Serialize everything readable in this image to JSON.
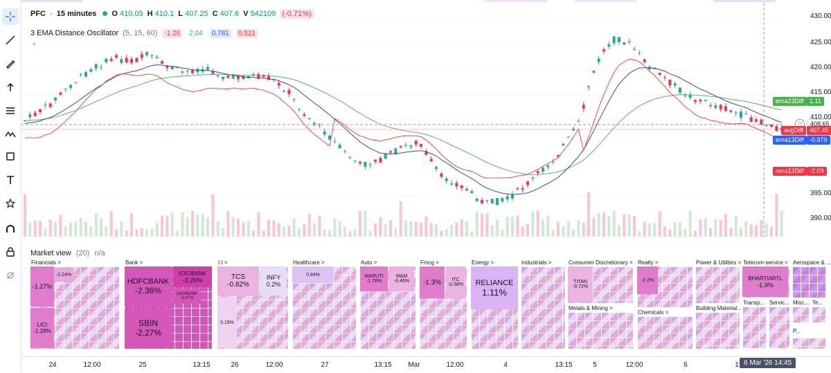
{
  "toolbar": {
    "tools": [
      {
        "id": "crosshair",
        "icon": "crosshair-icon"
      },
      {
        "id": "trendline",
        "icon": "trendline-icon"
      },
      {
        "id": "brush",
        "icon": "brush-icon"
      },
      {
        "id": "arrow",
        "icon": "arrow-up-icon"
      },
      {
        "id": "fib",
        "icon": "fib-levels-icon"
      },
      {
        "id": "pattern",
        "icon": "pattern-icon"
      },
      {
        "id": "rectangle",
        "icon": "rectangle-icon"
      },
      {
        "id": "text",
        "icon": "text-icon"
      },
      {
        "id": "favorites",
        "icon": "star-icon"
      },
      {
        "id": "magnet",
        "icon": "magnet-icon"
      },
      {
        "id": "lock",
        "icon": "lock-icon"
      },
      {
        "id": "hide",
        "icon": "eye-off-icon"
      }
    ]
  },
  "legend": {
    "symbol": "PFC",
    "interval": "15 minutes",
    "o_key": "O",
    "o_val": "410.05",
    "h_key": "H",
    "h_val": "410.1",
    "l_key": "L",
    "l_val": "407.25",
    "c_key": "C",
    "c_val": "407.6",
    "v_key": "V",
    "v_val": "542109",
    "change": "(-0.71%)"
  },
  "indicator": {
    "title": "3 EMA Distance Oscillator",
    "params": "(5, 15, 60)",
    "v1": "-1.26",
    "v2": "2.04",
    "v3": "0.781",
    "v4": "0.521"
  },
  "price_axis": {
    "labels": [
      "430.00",
      "425.00",
      "420.00",
      "415.00",
      "410.00",
      "395.00",
      "390.00"
    ],
    "tags": {
      "ema23": {
        "name": "ema23Diff",
        "value": "1.11",
        "color": "#4caf50"
      },
      "price": {
        "value": "408.65",
        "color": "#ffffff"
      },
      "avg": {
        "name": "avgDiff",
        "value": "407.45",
        "color": "#f23645"
      },
      "ema13": {
        "name": "ema13Diff",
        "value": "-0.979",
        "color": "#2962ff"
      },
      "ema12": {
        "name": "ema12Diff",
        "value": "-2.09",
        "color": "#f23645"
      }
    }
  },
  "market_view": {
    "title": "Market view",
    "count": "(20)",
    "status": "n/a",
    "sectors": [
      {
        "name": "Financials >",
        "stocks": [
          {
            "label": "",
            "value": "-2.24%"
          },
          {
            "label": "",
            "value": "-1.27%"
          },
          {
            "label": "LICI",
            "value": "-1.28%"
          }
        ]
      },
      {
        "name": "Bank >",
        "stocks": [
          {
            "label": "HDFCBANK",
            "value": "-2.36%"
          },
          {
            "label": "ICICIBANK",
            "value": "-3.26%"
          },
          {
            "label": "AXISBANK",
            "value": "-2.47%"
          },
          {
            "label": "SBIN",
            "value": "-2.27%"
          }
        ]
      },
      {
        "name": "I.t >",
        "stocks": [
          {
            "label": "TCS",
            "value": "-0.82%"
          },
          {
            "label": "INFY",
            "value": "0.2%"
          },
          {
            "label": "",
            "value": "0.19%"
          }
        ]
      },
      {
        "name": "Healthcare >",
        "stocks": [
          {
            "label": "",
            "value": "0.84%"
          }
        ]
      },
      {
        "name": "Auto >",
        "stocks": [
          {
            "label": "MARUTI",
            "value": "-1.78%"
          },
          {
            "label": "M&M",
            "value": "-0.46%"
          }
        ]
      },
      {
        "name": "Fmcg >",
        "stocks": [
          {
            "label": "",
            "value": "-1.3%"
          },
          {
            "label": "ITC",
            "value": "-0.58%"
          }
        ]
      },
      {
        "name": "Energy >",
        "stocks": [
          {
            "label": "RELIANCE",
            "value": "1.11%"
          }
        ]
      },
      {
        "name": "Industrials >",
        "stocks": []
      },
      {
        "name": "Consumer Discretionary >",
        "stocks": [
          {
            "label": "TITAN",
            "value": "-0.72%"
          }
        ]
      },
      {
        "name": "Metals & Mining >",
        "stocks": []
      },
      {
        "name": "Realty >",
        "stocks": [
          {
            "label": "",
            "value": "-2.2%"
          }
        ]
      },
      {
        "name": "Chemicals >",
        "stocks": []
      },
      {
        "name": "Power & Utilities >",
        "stocks": []
      },
      {
        "name": "Building Material...",
        "stocks": []
      },
      {
        "name": "Telecom-service >",
        "stocks": [
          {
            "label": "BHARTIARTL",
            "value": "-1.9%"
          }
        ]
      },
      {
        "name": "Transp...",
        "stocks": []
      },
      {
        "name": "Servic...",
        "stocks": []
      },
      {
        "name": "Aerospace & ...",
        "stocks": []
      },
      {
        "name": "Misc...",
        "stocks": []
      },
      {
        "name": "Te...",
        "stocks": []
      },
      {
        "name": "P...",
        "stocks": []
      }
    ]
  },
  "time_axis": {
    "ticks": [
      "24",
      "12:00",
      "25",
      "13:15",
      "26",
      "12:00",
      "27",
      "13:15",
      "Mar",
      "12:00",
      "4",
      "13:15",
      "5",
      "12:00",
      "6",
      "1"
    ],
    "cursor": "6 Mar '26  14:45"
  },
  "colors": {
    "up": "#22ab94",
    "down": "#f23645",
    "ema_green": "#4caf50",
    "ema_blue": "#3949ab",
    "ema_red": "#f23645",
    "vol_up": "#a5d6a7",
    "vol_down": "#f8bbd0"
  }
}
